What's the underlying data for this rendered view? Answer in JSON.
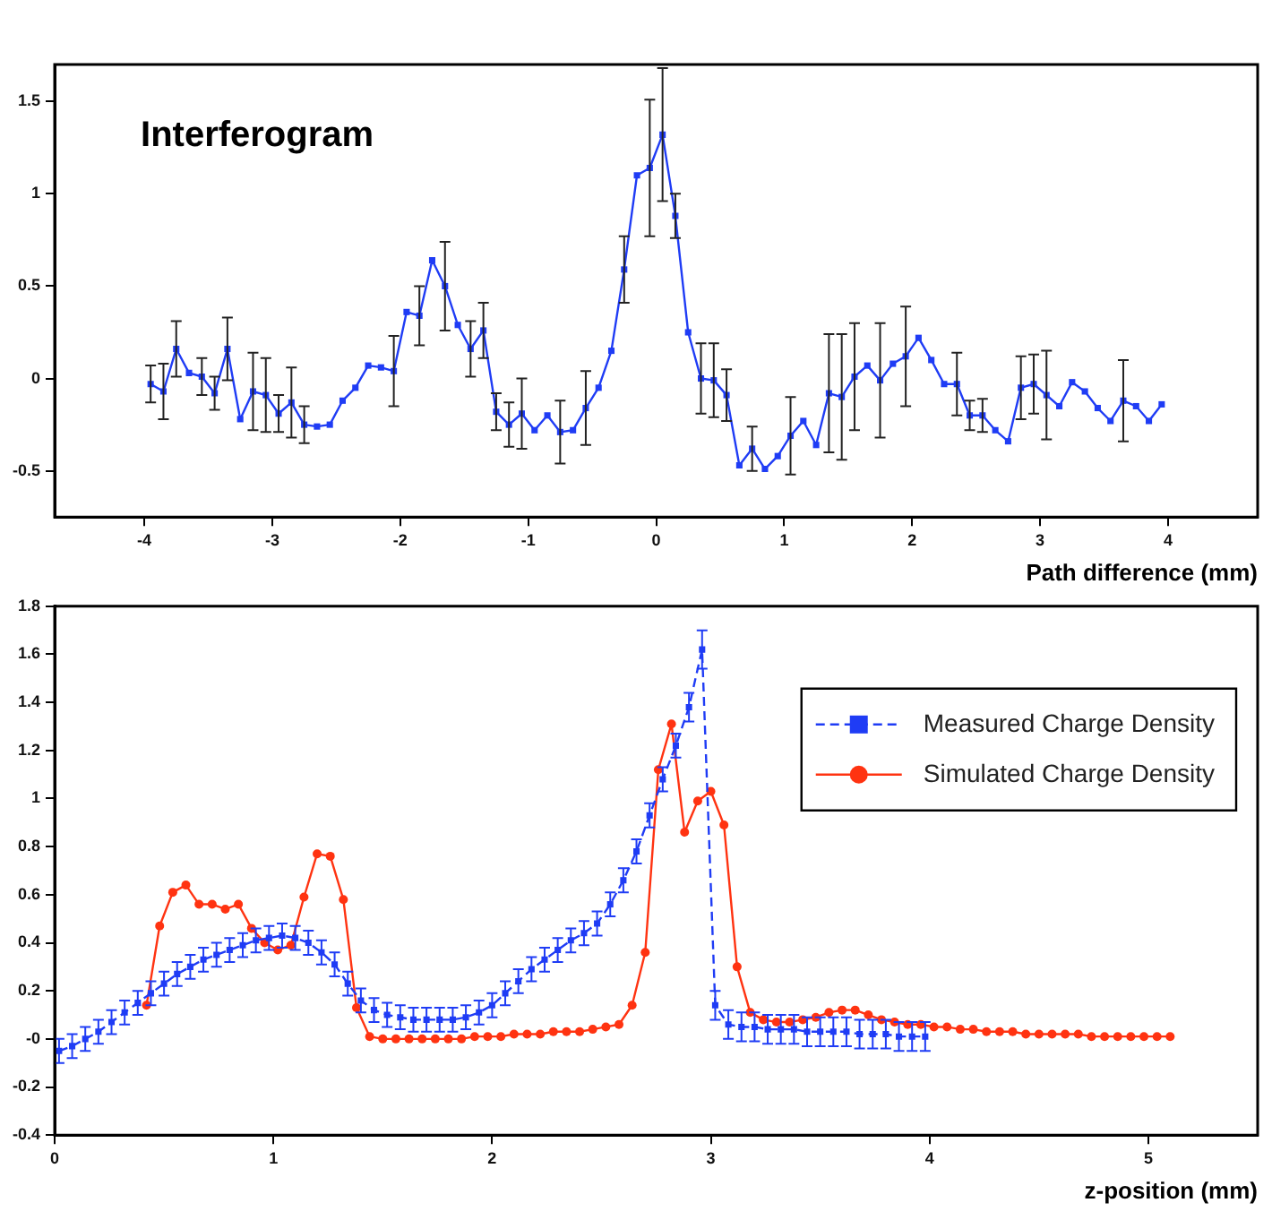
{
  "chart_data": [
    {
      "type": "line",
      "title": "Interferogram",
      "xlabel": "Path difference (mm)",
      "xlim": [
        -4.7,
        4.7
      ],
      "xticks": [
        -4,
        -3,
        -2,
        -1,
        0,
        1,
        2,
        3,
        4
      ],
      "ylim": [
        -0.75,
        1.7
      ],
      "yticks": [
        -0.5,
        0,
        0.5,
        1,
        1.5
      ],
      "grid": false,
      "legend": false,
      "marker": "square",
      "line_style": "solid",
      "x": [
        -3.95,
        -3.85,
        -3.75,
        -3.65,
        -3.55,
        -3.45,
        -3.35,
        -3.25,
        -3.15,
        -3.05,
        -2.95,
        -2.85,
        -2.75,
        -2.65,
        -2.55,
        -2.45,
        -2.35,
        -2.25,
        -2.15,
        -2.05,
        -1.95,
        -1.85,
        -1.75,
        -1.65,
        -1.55,
        -1.45,
        -1.35,
        -1.25,
        -1.15,
        -1.05,
        -0.95,
        -0.85,
        -0.75,
        -0.65,
        -0.55,
        -0.45,
        -0.35,
        -0.25,
        -0.15,
        -0.05,
        0.05,
        0.15,
        0.25,
        0.35,
        0.45,
        0.55,
        0.65,
        0.75,
        0.85,
        0.95,
        1.05,
        1.15,
        1.25,
        1.35,
        1.45,
        1.55,
        1.65,
        1.75,
        1.85,
        1.95,
        2.05,
        2.15,
        2.25,
        2.35,
        2.45,
        2.55,
        2.65,
        2.75,
        2.85,
        2.95,
        3.05,
        3.15,
        3.25,
        3.35,
        3.45,
        3.55,
        3.65,
        3.75,
        3.85,
        3.95
      ],
      "series": [
        {
          "color": "#1f3cf5",
          "values": [
            -0.03,
            -0.07,
            0.16,
            0.03,
            0.01,
            -0.08,
            0.16,
            -0.22,
            -0.07,
            -0.09,
            -0.19,
            -0.13,
            -0.25,
            -0.26,
            -0.25,
            -0.12,
            -0.05,
            0.07,
            0.06,
            0.04,
            0.36,
            0.34,
            0.64,
            0.5,
            0.29,
            0.16,
            0.26,
            -0.18,
            -0.25,
            -0.19,
            -0.28,
            -0.2,
            -0.29,
            -0.28,
            -0.16,
            -0.05,
            0.15,
            0.59,
            1.1,
            1.14,
            1.32,
            0.88,
            0.25,
            0,
            -0.01,
            -0.09,
            -0.47,
            -0.38,
            -0.49,
            -0.42,
            -0.31,
            -0.23,
            -0.36,
            -0.08,
            -0.1,
            0.01,
            0.07,
            -0.01,
            0.08,
            0.12,
            0.22,
            0.1,
            -0.03,
            -0.03,
            -0.2,
            -0.2,
            -0.28,
            -0.34,
            -0.05,
            -0.03,
            -0.09,
            -0.15,
            -0.02,
            -0.07,
            -0.16,
            -0.23,
            -0.12,
            -0.15,
            -0.23,
            -0.14
          ],
          "errors": [
            0.1,
            0.15,
            0.15,
            null,
            0.1,
            0.09,
            0.17,
            null,
            0.21,
            0.2,
            0.1,
            0.19,
            0.1,
            null,
            null,
            null,
            null,
            null,
            null,
            0.19,
            null,
            0.16,
            null,
            0.24,
            null,
            0.15,
            0.15,
            0.1,
            0.12,
            0.19,
            null,
            null,
            0.17,
            null,
            0.2,
            null,
            null,
            0.18,
            null,
            0.37,
            0.36,
            0.12,
            null,
            0.19,
            0.2,
            0.14,
            null,
            0.12,
            null,
            null,
            0.21,
            null,
            null,
            0.32,
            0.34,
            0.29,
            null,
            0.31,
            null,
            0.27,
            null,
            null,
            null,
            0.17,
            0.08,
            0.09,
            null,
            null,
            0.17,
            0.16,
            0.24,
            null,
            null,
            null,
            null,
            null,
            0.22,
            null,
            null,
            null
          ]
        }
      ]
    },
    {
      "type": "line",
      "xlabel": "z-position (mm)",
      "xlim": [
        0,
        5.5
      ],
      "xticks": [
        0,
        1,
        2,
        3,
        4,
        5
      ],
      "ylim": [
        -0.4,
        1.8
      ],
      "yticks": [
        -0.4,
        -0.2,
        {
          "value": 0,
          "label": "-0"
        },
        0.2,
        0.4,
        0.6,
        0.8,
        1,
        1.2,
        1.4,
        1.6,
        1.8
      ],
      "grid": false,
      "legend": "top right",
      "series": [
        {
          "name": "Measured Charge Density",
          "color": "#1f3cf5",
          "marker": "square",
          "line_style": "dashed",
          "x": [
            0.02,
            0.08,
            0.14,
            0.2,
            0.26,
            0.32,
            0.38,
            0.44,
            0.5,
            0.56,
            0.62,
            0.68,
            0.74,
            0.8,
            0.86,
            0.92,
            0.98,
            1.04,
            1.1,
            1.16,
            1.22,
            1.28,
            1.34,
            1.4,
            1.46,
            1.52,
            1.58,
            1.64,
            1.7,
            1.76,
            1.82,
            1.88,
            1.94,
            2,
            2.06,
            2.12,
            2.18,
            2.24,
            2.3,
            2.36,
            2.42,
            2.48,
            2.54,
            2.6,
            2.66,
            2.72,
            2.78,
            2.84,
            2.9,
            2.96,
            3.02,
            3.08,
            3.14,
            3.2,
            3.26,
            3.32,
            3.38,
            3.44,
            3.5,
            3.56,
            3.62,
            3.68,
            3.74,
            3.8,
            3.86,
            3.92,
            3.98
          ],
          "values": [
            -0.05,
            -0.03,
            0,
            0.03,
            0.07,
            0.11,
            0.15,
            0.19,
            0.23,
            0.27,
            0.3,
            0.33,
            0.35,
            0.37,
            0.39,
            0.41,
            0.42,
            0.43,
            0.42,
            0.4,
            0.36,
            0.31,
            0.23,
            0.16,
            0.12,
            0.1,
            0.09,
            0.08,
            0.08,
            0.08,
            0.08,
            0.09,
            0.11,
            0.14,
            0.19,
            0.24,
            0.29,
            0.33,
            0.37,
            0.41,
            0.44,
            0.48,
            0.56,
            0.66,
            0.78,
            0.93,
            1.08,
            1.22,
            1.38,
            1.62,
            0.14,
            0.06,
            0.05,
            0.05,
            0.04,
            0.04,
            0.04,
            0.03,
            0.03,
            0.03,
            0.03,
            0.02,
            0.02,
            0.02,
            0.01,
            0.01,
            0.01
          ],
          "errors": [
            0.05,
            0.05,
            0.05,
            0.05,
            0.05,
            0.05,
            0.05,
            0.05,
            0.05,
            0.05,
            0.05,
            0.05,
            0.05,
            0.05,
            0.05,
            0.05,
            0.05,
            0.05,
            0.05,
            0.05,
            0.05,
            0.05,
            0.05,
            0.05,
            0.05,
            0.05,
            0.05,
            0.05,
            0.05,
            0.05,
            0.05,
            0.05,
            0.05,
            0.05,
            0.05,
            0.05,
            0.05,
            0.05,
            0.05,
            0.05,
            0.05,
            0.05,
            0.05,
            0.05,
            0.05,
            0.05,
            0.05,
            0.05,
            0.06,
            0.08,
            0.06,
            0.06,
            0.06,
            0.06,
            0.06,
            0.06,
            0.06,
            0.06,
            0.06,
            0.06,
            0.06,
            0.06,
            0.06,
            0.06,
            0.06,
            0.06,
            0.06
          ]
        },
        {
          "name": "Simulated Charge Density",
          "color": "#ff3311",
          "marker": "circle",
          "line_style": "solid",
          "x": [
            0.42,
            0.48,
            0.54,
            0.6,
            0.66,
            0.72,
            0.78,
            0.84,
            0.9,
            0.96,
            1.02,
            1.08,
            1.14,
            1.2,
            1.26,
            1.32,
            1.38,
            1.44,
            1.5,
            1.56,
            1.62,
            1.68,
            1.74,
            1.8,
            1.86,
            1.92,
            1.98,
            2.04,
            2.1,
            2.16,
            2.22,
            2.28,
            2.34,
            2.4,
            2.46,
            2.52,
            2.58,
            2.64,
            2.7,
            2.76,
            2.82,
            2.88,
            2.94,
            3,
            3.06,
            3.12,
            3.18,
            3.24,
            3.3,
            3.36,
            3.42,
            3.48,
            3.54,
            3.6,
            3.66,
            3.72,
            3.78,
            3.84,
            3.9,
            3.96,
            4.02,
            4.08,
            4.14,
            4.2,
            4.26,
            4.32,
            4.38,
            4.44,
            4.5,
            4.56,
            4.62,
            4.68,
            4.74,
            4.8,
            4.86,
            4.92,
            4.98,
            5.04,
            5.1
          ],
          "values": [
            0.14,
            0.47,
            0.61,
            0.64,
            0.56,
            0.56,
            0.54,
            0.56,
            0.46,
            0.4,
            0.37,
            0.39,
            0.59,
            0.77,
            0.76,
            0.58,
            0.13,
            0.01,
            0,
            0,
            0,
            0,
            0,
            0,
            0,
            0.01,
            0.01,
            0.01,
            0.02,
            0.02,
            0.02,
            0.03,
            0.03,
            0.03,
            0.04,
            0.05,
            0.06,
            0.14,
            0.36,
            1.12,
            1.31,
            0.86,
            0.99,
            1.03,
            0.89,
            0.3,
            0.11,
            0.08,
            0.07,
            0.07,
            0.08,
            0.09,
            0.11,
            0.12,
            0.12,
            0.1,
            0.08,
            0.07,
            0.06,
            0.06,
            0.05,
            0.05,
            0.04,
            0.04,
            0.03,
            0.03,
            0.03,
            0.02,
            0.02,
            0.02,
            0.02,
            0.02,
            0.01,
            0.01,
            0.01,
            0.01,
            0.01,
            0.01,
            0.01
          ]
        }
      ]
    }
  ]
}
